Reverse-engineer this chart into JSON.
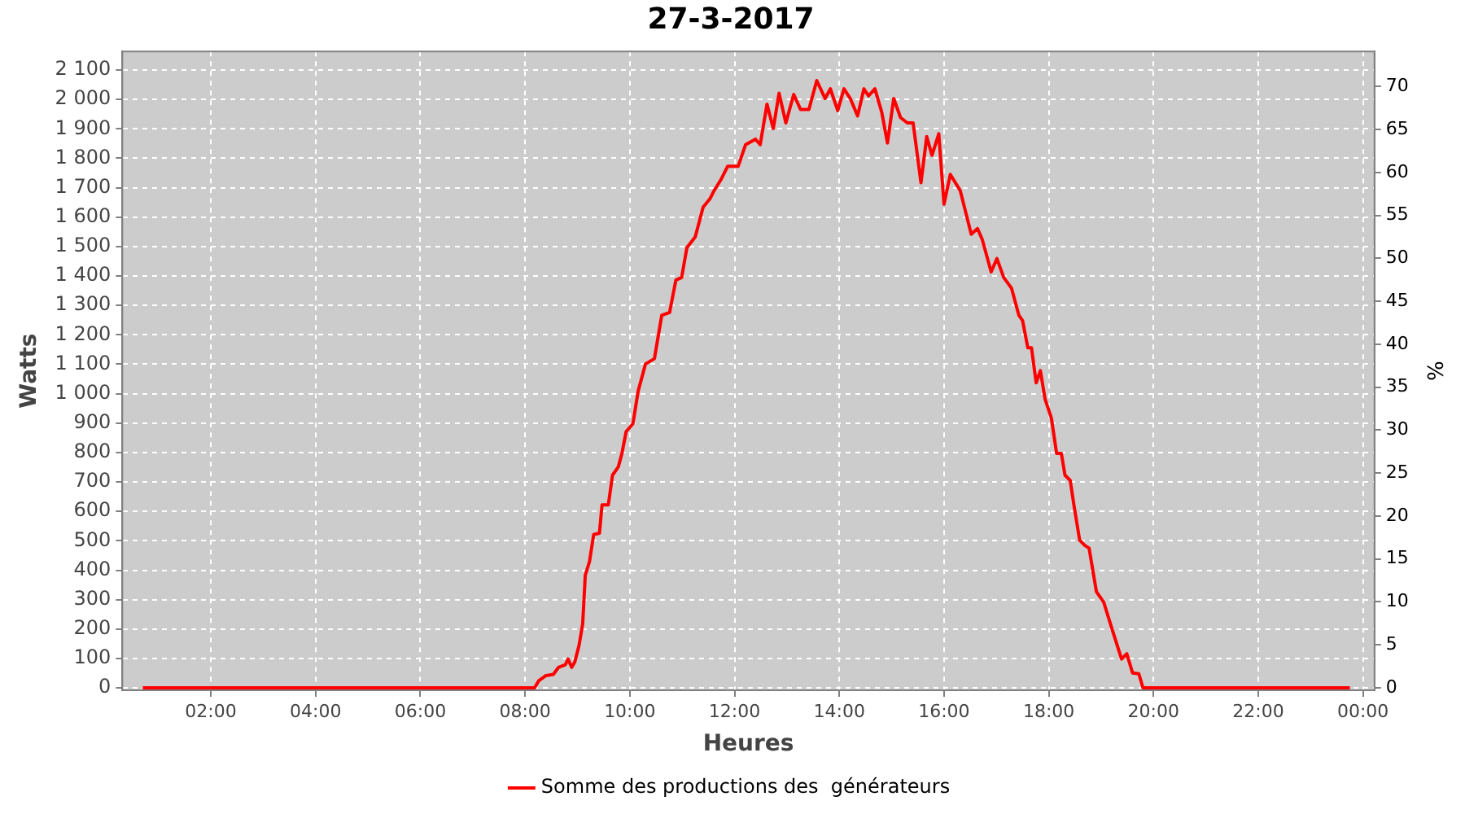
{
  "chart_data": {
    "type": "line",
    "title": "27-3-2017",
    "xlabel": "Heures",
    "ylabel": "Watts",
    "y2label": "%",
    "xlim": [
      0.31,
      24.22
    ],
    "xticks": [
      {
        "value": 2,
        "label": "02:00"
      },
      {
        "value": 4,
        "label": "04:00"
      },
      {
        "value": 6,
        "label": "06:00"
      },
      {
        "value": 8,
        "label": "08:00"
      },
      {
        "value": 10,
        "label": "10:00"
      },
      {
        "value": 12,
        "label": "12:00"
      },
      {
        "value": 14,
        "label": "14:00"
      },
      {
        "value": 16,
        "label": "16:00"
      },
      {
        "value": 18,
        "label": "18:00"
      },
      {
        "value": 20,
        "label": "20:00"
      },
      {
        "value": 22,
        "label": "22:00"
      },
      {
        "value": 24,
        "label": "00:00"
      }
    ],
    "ylim": [
      -8,
      2163
    ],
    "yticks": [
      0,
      100,
      200,
      300,
      400,
      500,
      600,
      700,
      800,
      900,
      {
        "value": 1000,
        "label": "1 000"
      },
      {
        "value": 1100,
        "label": "1 100"
      },
      {
        "value": 1200,
        "label": "1 200"
      },
      {
        "value": 1300,
        "label": "1 300"
      },
      {
        "value": 1400,
        "label": "1 400"
      },
      {
        "value": 1500,
        "label": "1 500"
      },
      {
        "value": 1600,
        "label": "1 600"
      },
      {
        "value": 1700,
        "label": "1 700"
      },
      {
        "value": 1800,
        "label": "1 800"
      },
      {
        "value": 1900,
        "label": "1 900"
      },
      {
        "value": 2000,
        "label": "2 000"
      },
      {
        "value": 2100,
        "label": "2 100"
      }
    ],
    "y2lim": [
      -0.3,
      74.1
    ],
    "y2ticks": [
      0,
      5,
      10,
      15,
      20,
      25,
      30,
      35,
      40,
      45,
      50,
      55,
      60,
      65,
      70
    ],
    "grid": true,
    "legend": "bottom",
    "marker": "none",
    "line_style": "solid",
    "series": [
      {
        "name": "Somme des productions des  générateurs",
        "color": "#ff0000",
        "x": [
          0.7,
          4.0,
          8.18,
          8.26,
          8.4,
          8.54,
          8.64,
          8.77,
          8.82,
          8.89,
          8.95,
          9.03,
          9.1,
          9.15,
          9.23,
          9.31,
          9.42,
          9.47,
          9.59,
          9.67,
          9.78,
          9.85,
          9.93,
          10.06,
          10.16,
          10.3,
          10.47,
          10.61,
          10.76,
          10.88,
          10.99,
          11.09,
          11.25,
          11.4,
          11.53,
          11.61,
          11.74,
          11.87,
          12.07,
          12.21,
          12.4,
          12.49,
          12.62,
          12.74,
          12.85,
          12.98,
          13.13,
          13.26,
          13.42,
          13.57,
          13.73,
          13.83,
          13.97,
          14.09,
          14.21,
          14.35,
          14.47,
          14.56,
          14.68,
          14.81,
          14.92,
          15.04,
          15.17,
          15.3,
          15.41,
          15.56,
          15.67,
          15.77,
          15.9,
          16.0,
          16.12,
          16.31,
          16.52,
          16.64,
          16.73,
          16.9,
          17.01,
          17.14,
          17.29,
          17.43,
          17.5,
          17.6,
          17.67,
          17.76,
          17.84,
          17.93,
          18.05,
          18.15,
          18.24,
          18.31,
          18.41,
          18.48,
          18.59,
          18.69,
          18.77,
          18.91,
          19.05,
          19.21,
          19.39,
          19.49,
          19.6,
          19.72,
          19.8,
          23.75
        ],
        "values": [
          0,
          0,
          0,
          24,
          42,
          46,
          70,
          79,
          98,
          70,
          88,
          144,
          217,
          383,
          429,
          521,
          526,
          622,
          622,
          723,
          751,
          797,
          871,
          898,
          1009,
          1101,
          1119,
          1266,
          1276,
          1386,
          1395,
          1496,
          1533,
          1634,
          1662,
          1690,
          1727,
          1773,
          1773,
          1846,
          1865,
          1846,
          1984,
          1901,
          2021,
          1920,
          2017,
          1966,
          1966,
          2064,
          2003,
          2036,
          1962,
          2036,
          2003,
          1944,
          2036,
          2012,
          2036,
          1957,
          1852,
          2003,
          1938,
          1920,
          1920,
          1717,
          1874,
          1810,
          1883,
          1644,
          1745,
          1690,
          1542,
          1561,
          1524,
          1414,
          1459,
          1395,
          1358,
          1266,
          1248,
          1156,
          1156,
          1037,
          1078,
          981,
          917,
          797,
          797,
          723,
          705,
          622,
          502,
          484,
          475,
          327,
          291,
          199,
          98,
          116,
          51,
          48,
          0,
          0
        ]
      }
    ]
  }
}
